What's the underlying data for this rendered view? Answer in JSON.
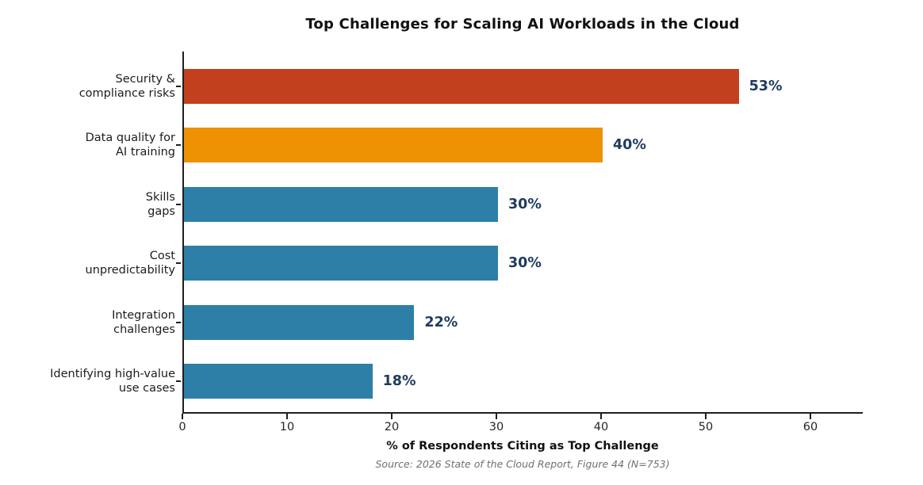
{
  "chart_data": {
    "type": "bar",
    "orientation": "horizontal",
    "title": "Top Challenges for Scaling AI Workloads in the Cloud",
    "xlabel": "% of Respondents Citing as Top Challenge",
    "source": "Source: 2026 State of the Cloud Report, Figure 44 (N=753)",
    "categories": [
      "Security &\ncompliance risks",
      "Data quality for\nAI training",
      "Skills\ngaps",
      "Cost\nunpredictability",
      "Integration\nchallenges",
      "Identifying high-value\nuse cases"
    ],
    "values": [
      53,
      40,
      30,
      30,
      22,
      18
    ],
    "value_labels": [
      "53%",
      "40%",
      "30%",
      "30%",
      "22%",
      "18%"
    ],
    "bar_colors": [
      "#C3401E",
      "#EE9102",
      "#2E7FA8",
      "#2E7FA8",
      "#2E7FA8",
      "#2E7FA8"
    ],
    "value_label_color": "#1F3A5F",
    "xlim": [
      0,
      65
    ],
    "xticks": [
      0,
      10,
      20,
      30,
      40,
      50,
      60
    ],
    "grid": false,
    "legend": null
  }
}
